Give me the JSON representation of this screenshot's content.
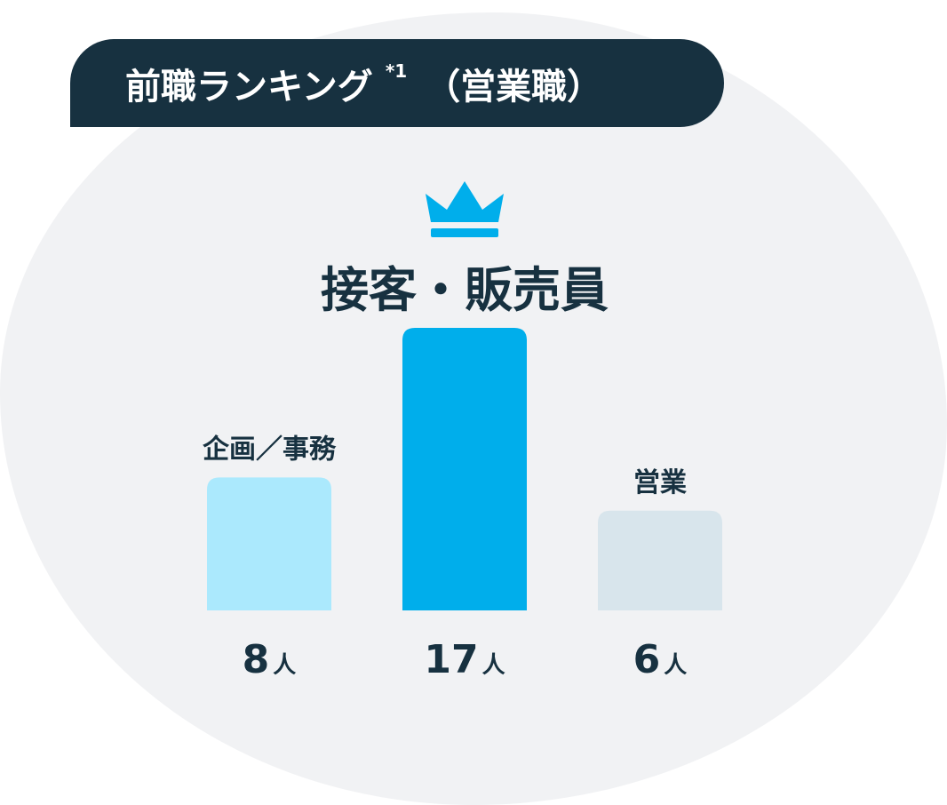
{
  "banner": {
    "title": "前職ランキング",
    "footnote": "*1",
    "subtitle": "（営業職）"
  },
  "colors": {
    "banner_bg": "#173140",
    "text_dark": "#173140",
    "bar_primary": "#00aeeb",
    "bar_secondary": "#abe9fd",
    "bar_tertiary": "#d8e5ec",
    "background_blob": "#f1f2f4"
  },
  "icons": {
    "rank_icon": "crown-icon"
  },
  "chart_data": {
    "type": "bar",
    "title": "",
    "xlabel": "",
    "ylabel": "",
    "unit": "人",
    "categories": [
      "企画／事務",
      "接客・販売員",
      "営業"
    ],
    "values": [
      8,
      17,
      6
    ],
    "top_category": "接客・販売員",
    "ylim": [
      0,
      17
    ],
    "grid": false,
    "legend": "none"
  }
}
